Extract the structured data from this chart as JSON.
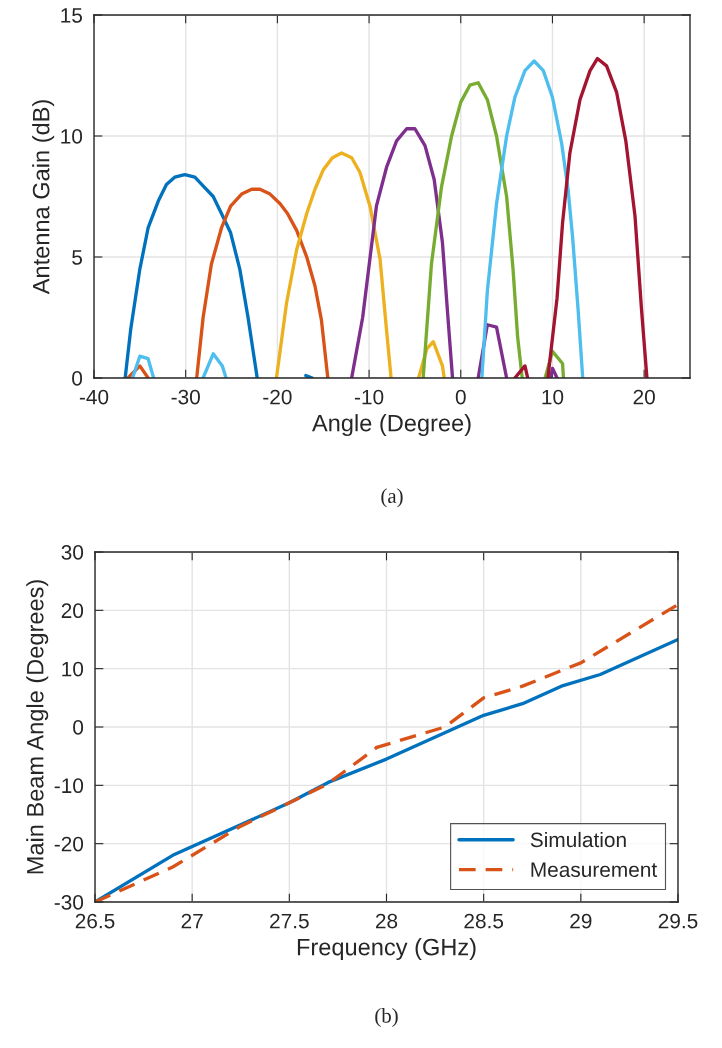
{
  "chart_data": [
    {
      "type": "line",
      "xlabel": "Angle (Degree)",
      "ylabel": "Antenna Gain (dB)",
      "annotations": [
        "(a)"
      ],
      "xlim": [
        -40,
        25
      ],
      "xticks": [
        -40,
        -30,
        -20,
        -10,
        0,
        10,
        20
      ],
      "ylim": [
        0,
        15
      ],
      "yticks": [
        0,
        5,
        10,
        15
      ],
      "grid": true,
      "legend": false,
      "series": [
        {
          "color": "#0072bd",
          "x": [
            -36.6,
            -36.0,
            -35.0,
            -34.1,
            -33.0,
            -32.1,
            -31.2,
            -30.1,
            -29.0,
            -28.0,
            -27.0,
            -26.1,
            -25.1,
            -24.1,
            -23.2,
            -22.2,
            -19.5,
            -16.9,
            -16.2
          ],
          "values": [
            0,
            2.0,
            4.5,
            6.2,
            7.3,
            8.0,
            8.3,
            8.4,
            8.3,
            7.9,
            7.5,
            6.8,
            6.0,
            4.5,
            2.5,
            0,
            null,
            0.1,
            0
          ]
        },
        {
          "color": "#d95319",
          "x": [
            -36.3,
            -35.0,
            -34.1,
            -31.5,
            -28.8,
            -28.1,
            -27.2,
            -26.1,
            -25.1,
            -23.9,
            -22.8,
            -21.9,
            -20.8,
            -19.7,
            -18.9,
            -17.9,
            -16.8,
            -15.9,
            -15.2,
            -14.5
          ],
          "values": [
            0,
            0.5,
            0,
            null,
            0,
            2.5,
            4.7,
            6.2,
            7.1,
            7.6,
            7.8,
            7.8,
            7.6,
            7.2,
            6.8,
            6.1,
            5.0,
            3.8,
            2.4,
            0
          ]
        },
        {
          "color": "#edb120",
          "x": [
            -20.1,
            -19.0,
            -17.9,
            -16.8,
            -15.9,
            -15.0,
            -14.0,
            -13.0,
            -11.9,
            -11.0,
            -9.9,
            -8.8,
            -8.1,
            -7.6,
            -6.0,
            -4.6,
            -3.7,
            -3.0,
            -2.0,
            -1.8
          ],
          "values": [
            0,
            3.1,
            5.3,
            6.8,
            7.8,
            8.6,
            9.1,
            9.3,
            9.1,
            8.5,
            7.1,
            4.9,
            2.0,
            0,
            null,
            0,
            1.2,
            1.5,
            0.5,
            0
          ]
        },
        {
          "color": "#7e2f8e",
          "x": [
            -11.9,
            -10.7,
            -9.2,
            -8.1,
            -7.0,
            -5.9,
            -5.0,
            -3.9,
            -2.9,
            -2.0,
            -1.4,
            -0.9,
            0.5,
            1.9,
            2.9,
            3.9,
            5.0,
            7.0,
            9.8,
            10.0,
            10.5
          ],
          "values": [
            0,
            2.5,
            7.1,
            8.7,
            9.8,
            10.3,
            10.3,
            9.6,
            8.2,
            5.6,
            2.5,
            0,
            null,
            0,
            2.2,
            2.1,
            0,
            null,
            0,
            0.4,
            0
          ]
        },
        {
          "color": "#77ac30",
          "x": [
            -4.1,
            -3.2,
            -2.1,
            -1.0,
            0,
            1.0,
            1.9,
            2.9,
            3.9,
            5.0,
            5.7,
            6.2,
            6.7,
            8.0,
            9.2,
            10.0,
            11.1,
            11.2
          ],
          "values": [
            0,
            4.7,
            7.9,
            10.0,
            11.4,
            12.1,
            12.2,
            11.5,
            10.0,
            7.5,
            4.5,
            1.7,
            0,
            null,
            0,
            1.1,
            0.6,
            0
          ]
        },
        {
          "color": "#4dbeee",
          "x": [
            -35.8,
            -35.0,
            -34.1,
            -33.5,
            -31.0,
            -28.1,
            -27.0,
            -26.0,
            -25.6,
            -12.0,
            2.3,
            2.9,
            3.9,
            5.0,
            5.9,
            7.0,
            8.0,
            9.0,
            10.0,
            11.0,
            11.7,
            12.2,
            12.8,
            13.3
          ],
          "values": [
            0,
            0.9,
            0.8,
            0,
            null,
            0,
            1.0,
            0.5,
            0,
            null,
            0,
            3.6,
            7.2,
            10.0,
            11.6,
            12.7,
            13.1,
            12.7,
            11.6,
            9.7,
            7.8,
            5.8,
            2.8,
            0
          ]
        },
        {
          "color": "#a2142f",
          "x": [
            5.9,
            7.0,
            7.3,
            8.5,
            9.5,
            10.5,
            11.1,
            11.9,
            13.0,
            14.1,
            14.9,
            15.9,
            17.0,
            18.0,
            19.0,
            19.7,
            20.3
          ],
          "values": [
            0,
            0.5,
            0,
            null,
            0,
            3.3,
            6.4,
            9.3,
            11.5,
            12.7,
            13.2,
            12.9,
            11.8,
            9.8,
            6.7,
            2.9,
            0
          ]
        }
      ]
    },
    {
      "type": "line",
      "xlabel": "Frequency (GHz)",
      "ylabel": "Main Beam Angle (Degrees)",
      "annotations": [
        "(b)"
      ],
      "xlim": [
        26.5,
        29.5
      ],
      "xticks": [
        26.5,
        27,
        27.5,
        28,
        28.5,
        29,
        29.5
      ],
      "ylim": [
        -30,
        30
      ],
      "yticks": [
        -30,
        -20,
        -10,
        0,
        10,
        20,
        30
      ],
      "grid": true,
      "legend": "bottom right",
      "series": [
        {
          "name": "Simulation",
          "color": "#0072bd",
          "line_style": "solid",
          "x": [
            26.5,
            26.9,
            27.5,
            27.7,
            28,
            28.3,
            28.5,
            28.7,
            28.9,
            29.1,
            29.5
          ],
          "values": [
            -30,
            -22,
            -13,
            -9.5,
            -5.5,
            -1,
            2,
            4,
            7,
            9,
            15
          ]
        },
        {
          "name": "Measurement",
          "color": "#d95319",
          "line_style": "dashed",
          "x": [
            26.5,
            26.9,
            27.25,
            27.5,
            27.7,
            27.95,
            28.3,
            28.5,
            28.7,
            29,
            29.5
          ],
          "values": [
            -30,
            -24,
            -17,
            -13,
            -9.7,
            -3.5,
            0,
            5,
            7,
            11,
            21
          ]
        }
      ]
    }
  ]
}
